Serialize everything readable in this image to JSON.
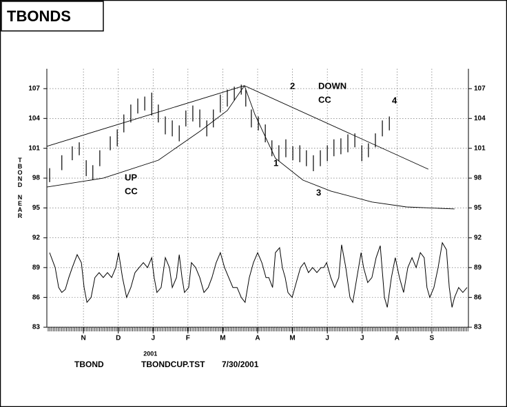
{
  "chart_data": {
    "type": "hilo",
    "title": "TBONDS",
    "ylabel": "TBOND NEAR",
    "xlim": [
      -0.05,
      12.05
    ],
    "ylim": [
      83,
      109
    ],
    "yticks": [
      83,
      86,
      89,
      92,
      95,
      98,
      101,
      104,
      107
    ],
    "xticks": [
      {
        "value": 1,
        "label": "N"
      },
      {
        "value": 2,
        "label": "D"
      },
      {
        "value": 3,
        "label": "J"
      },
      {
        "value": 4,
        "label": "F"
      },
      {
        "value": 5,
        "label": "M"
      },
      {
        "value": 6,
        "label": "A"
      },
      {
        "value": 7,
        "label": "M"
      },
      {
        "value": 8,
        "label": "J"
      },
      {
        "value": 9,
        "label": "J"
      },
      {
        "value": 10,
        "label": "A"
      },
      {
        "value": 11,
        "label": "S"
      }
    ],
    "year_label": "2001",
    "grid": true,
    "color": "#000000",
    "bars": {
      "x": [
        0.03,
        0.38,
        0.68,
        0.88,
        1.08,
        1.27,
        1.47,
        1.77,
        1.97,
        2.16,
        2.36,
        2.56,
        2.76,
        2.96,
        3.15,
        3.35,
        3.55,
        3.75,
        3.94,
        4.14,
        4.34,
        4.54,
        4.73,
        4.93,
        5.13,
        5.33,
        5.53,
        5.66,
        5.82,
        6.02,
        6.22,
        6.41,
        6.61,
        6.81,
        7.01,
        7.21,
        7.4,
        7.6,
        7.8,
        8.0,
        8.19,
        8.39,
        8.59,
        8.79,
        8.99,
        9.18,
        9.38,
        9.58,
        9.78
      ],
      "high": [
        99.0,
        100.3,
        101.2,
        101.6,
        99.8,
        99.3,
        100.8,
        102.2,
        102.9,
        104.4,
        105.4,
        106.0,
        106.2,
        106.6,
        105.4,
        104.2,
        103.8,
        103.3,
        104.8,
        105.3,
        104.9,
        103.8,
        104.9,
        106.4,
        106.9,
        107.2,
        107.4,
        106.9,
        104.9,
        104.2,
        103.4,
        101.8,
        101.3,
        101.9,
        101.2,
        101.3,
        100.8,
        100.3,
        100.8,
        101.3,
        101.9,
        102.0,
        102.4,
        102.5,
        101.3,
        101.5,
        102.5,
        103.8,
        104.2
      ],
      "low": [
        97.6,
        98.8,
        99.8,
        100.3,
        98.2,
        97.8,
        99.2,
        100.8,
        101.2,
        102.6,
        103.6,
        104.5,
        104.8,
        104.3,
        103.6,
        102.4,
        102.2,
        101.7,
        103.2,
        103.7,
        103.1,
        102.2,
        103.1,
        104.6,
        105.2,
        105.8,
        106.4,
        105.2,
        103.1,
        102.8,
        101.6,
        100.2,
        99.7,
        100.1,
        99.8,
        99.6,
        99.2,
        98.7,
        99.2,
        99.7,
        100.2,
        100.4,
        100.6,
        101.1,
        99.7,
        100.1,
        101.1,
        102.2,
        102.8
      ]
    },
    "lines": [
      {
        "x": [
          -0.05,
          5.62
        ],
        "values": [
          101.2,
          107.3
        ]
      },
      {
        "x": [
          5.62,
          10.9
        ],
        "values": [
          107.3,
          98.9
        ]
      },
      {
        "x": [
          -0.05,
          1.57,
          3.15,
          4.34,
          5.13,
          5.62
        ],
        "values": [
          97.1,
          98.0,
          99.8,
          102.7,
          104.8,
          107.3
        ]
      },
      {
        "x": [
          5.62,
          5.92,
          6.51,
          7.3,
          8.1,
          9.28,
          10.27,
          11.65
        ],
        "values": [
          107.3,
          104.4,
          100.0,
          97.8,
          96.7,
          95.6,
          95.1,
          94.9
        ]
      }
    ],
    "oscillator": {
      "x": [
        0.03,
        0.19,
        0.29,
        0.38,
        0.48,
        0.58,
        0.68,
        0.82,
        0.94,
        1.02,
        1.1,
        1.22,
        1.33,
        1.45,
        1.57,
        1.69,
        1.81,
        1.93,
        2.01,
        2.12,
        2.24,
        2.36,
        2.48,
        2.6,
        2.72,
        2.84,
        2.96,
        3.03,
        3.11,
        3.23,
        3.35,
        3.47,
        3.55,
        3.67,
        3.75,
        3.83,
        3.9,
        4.02,
        4.1,
        4.22,
        4.34,
        4.46,
        4.58,
        4.69,
        4.81,
        4.93,
        5.05,
        5.17,
        5.29,
        5.41,
        5.53,
        5.64,
        5.76,
        5.88,
        6.0,
        6.12,
        6.24,
        6.32,
        6.43,
        6.51,
        6.63,
        6.71,
        6.79,
        6.87,
        6.99,
        7.11,
        7.23,
        7.34,
        7.46,
        7.58,
        7.7,
        7.82,
        7.9,
        7.98,
        8.1,
        8.21,
        8.33,
        8.41,
        8.53,
        8.65,
        8.73,
        8.85,
        8.97,
        9.04,
        9.16,
        9.28,
        9.4,
        9.52,
        9.64,
        9.72,
        9.84,
        9.95,
        10.07,
        10.19,
        10.31,
        10.43,
        10.55,
        10.67,
        10.78,
        10.86,
        10.94,
        11.06,
        11.18,
        11.3,
        11.42,
        11.5,
        11.58,
        11.65,
        11.77,
        11.89,
        12.01
      ],
      "values": [
        90.5,
        89,
        87,
        86.5,
        86.8,
        88,
        89,
        90.3,
        89.5,
        87,
        85.5,
        86,
        88,
        88.5,
        88,
        88.5,
        88,
        89,
        90.5,
        88,
        86,
        87,
        88.5,
        89,
        89.5,
        89,
        90,
        88,
        86.5,
        87,
        90,
        89,
        87,
        88,
        90.3,
        88,
        86.5,
        87,
        89.5,
        89,
        88,
        86.5,
        87,
        88,
        89.5,
        90.5,
        89,
        88,
        87,
        87,
        86,
        85.5,
        88,
        89.5,
        90.5,
        89.5,
        88,
        88,
        87,
        90.5,
        91,
        89,
        88,
        86.5,
        86,
        87.5,
        89,
        89.5,
        88.5,
        89,
        88.5,
        89,
        89,
        89.5,
        88,
        87,
        88,
        91.3,
        89,
        86,
        85.5,
        88,
        90.5,
        89,
        87.5,
        88,
        90,
        91.2,
        86,
        85,
        88,
        90,
        88,
        86.5,
        89,
        90,
        89,
        90.5,
        90,
        87,
        86,
        87,
        89,
        91.5,
        90.8,
        87,
        85,
        86,
        87,
        86.5,
        87
      ]
    },
    "annotations": [
      "UP",
      "CC",
      "DOWN",
      "CC",
      "1",
      "2",
      "3",
      "4"
    ],
    "footer": [
      "TBOND",
      "TBONDCUP.TST",
      "7/30/2001"
    ]
  }
}
